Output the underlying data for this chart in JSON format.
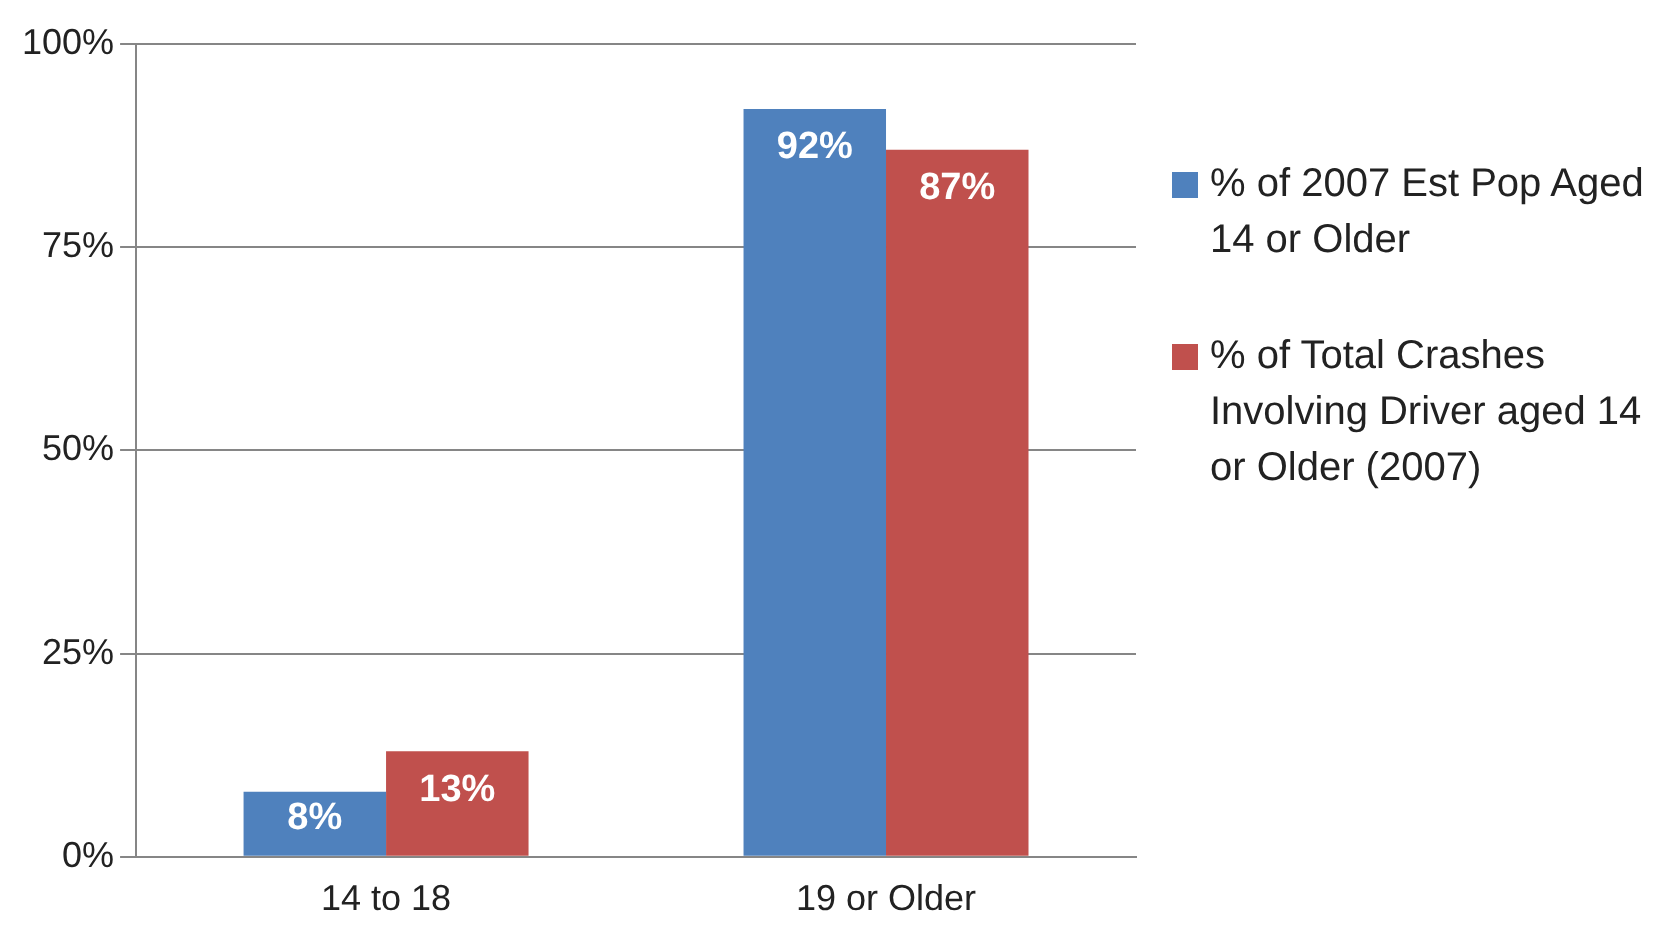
{
  "chart_data": {
    "type": "bar",
    "categories": [
      "14 to 18",
      "19 or Older"
    ],
    "series": [
      {
        "name": "% of 2007 Est Pop Aged 14 or Older",
        "color": "#4f81bd",
        "values": [
          8,
          92
        ],
        "value_labels": [
          "8%",
          "92%"
        ]
      },
      {
        "name": "% of Total Crashes Involving Driver aged 14 or Older (2007)",
        "color": "#c0504d",
        "values": [
          13,
          87
        ],
        "value_labels": [
          "13%",
          "87%"
        ]
      }
    ],
    "ylim": [
      0,
      100
    ],
    "yticks": [
      {
        "value": 0,
        "label": "0%"
      },
      {
        "value": 25,
        "label": "25%"
      },
      {
        "value": 50,
        "label": "50%"
      },
      {
        "value": 75,
        "label": "75%"
      },
      {
        "value": 100,
        "label": "100%"
      }
    ],
    "grid": "y",
    "legend": "right"
  }
}
